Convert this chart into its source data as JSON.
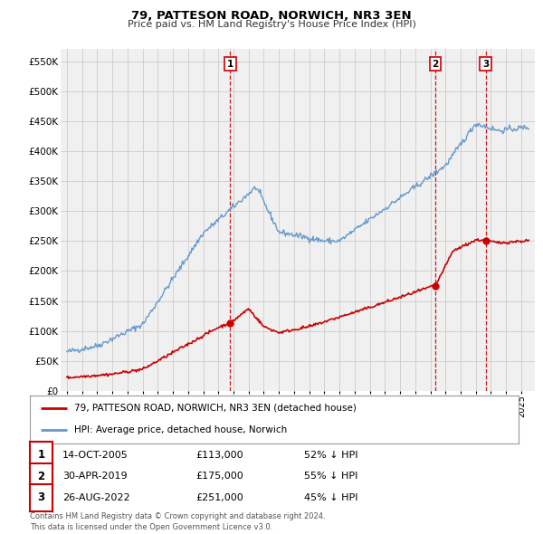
{
  "title": "79, PATTESON ROAD, NORWICH, NR3 3EN",
  "subtitle": "Price paid vs. HM Land Registry's House Price Index (HPI)",
  "ylim": [
    0,
    570000
  ],
  "yticks": [
    0,
    50000,
    100000,
    150000,
    200000,
    250000,
    300000,
    350000,
    400000,
    450000,
    500000,
    550000
  ],
  "hpi_color": "#6699cc",
  "price_color": "#cc0000",
  "sale_marker_color": "#cc0000",
  "vline_color": "#cc0000",
  "background_color": "#f0f0f0",
  "legend_label_price": "79, PATTESON ROAD, NORWICH, NR3 3EN (detached house)",
  "legend_label_hpi": "HPI: Average price, detached house, Norwich",
  "sale1": {
    "date_str": "14-OCT-2005",
    "date_num": 2005.79,
    "price": 113000,
    "label": "1",
    "hpi_pct": "52% ↓ HPI"
  },
  "sale2": {
    "date_str": "30-APR-2019",
    "date_num": 2019.33,
    "price": 175000,
    "label": "2",
    "hpi_pct": "55% ↓ HPI"
  },
  "sale3": {
    "date_str": "26-AUG-2022",
    "date_num": 2022.65,
    "price": 251000,
    "label": "3",
    "hpi_pct": "45% ↓ HPI"
  },
  "footer": "Contains HM Land Registry data © Crown copyright and database right 2024.\nThis data is licensed under the Open Government Licence v3.0.",
  "table_rows": [
    {
      "num": "1",
      "date": "14-OCT-2005",
      "price": "£113,000",
      "hpi": "52% ↓ HPI"
    },
    {
      "num": "2",
      "date": "30-APR-2019",
      "price": "£175,000",
      "hpi": "55% ↓ HPI"
    },
    {
      "num": "3",
      "date": "26-AUG-2022",
      "price": "£251,000",
      "hpi": "45% ↓ HPI"
    }
  ]
}
